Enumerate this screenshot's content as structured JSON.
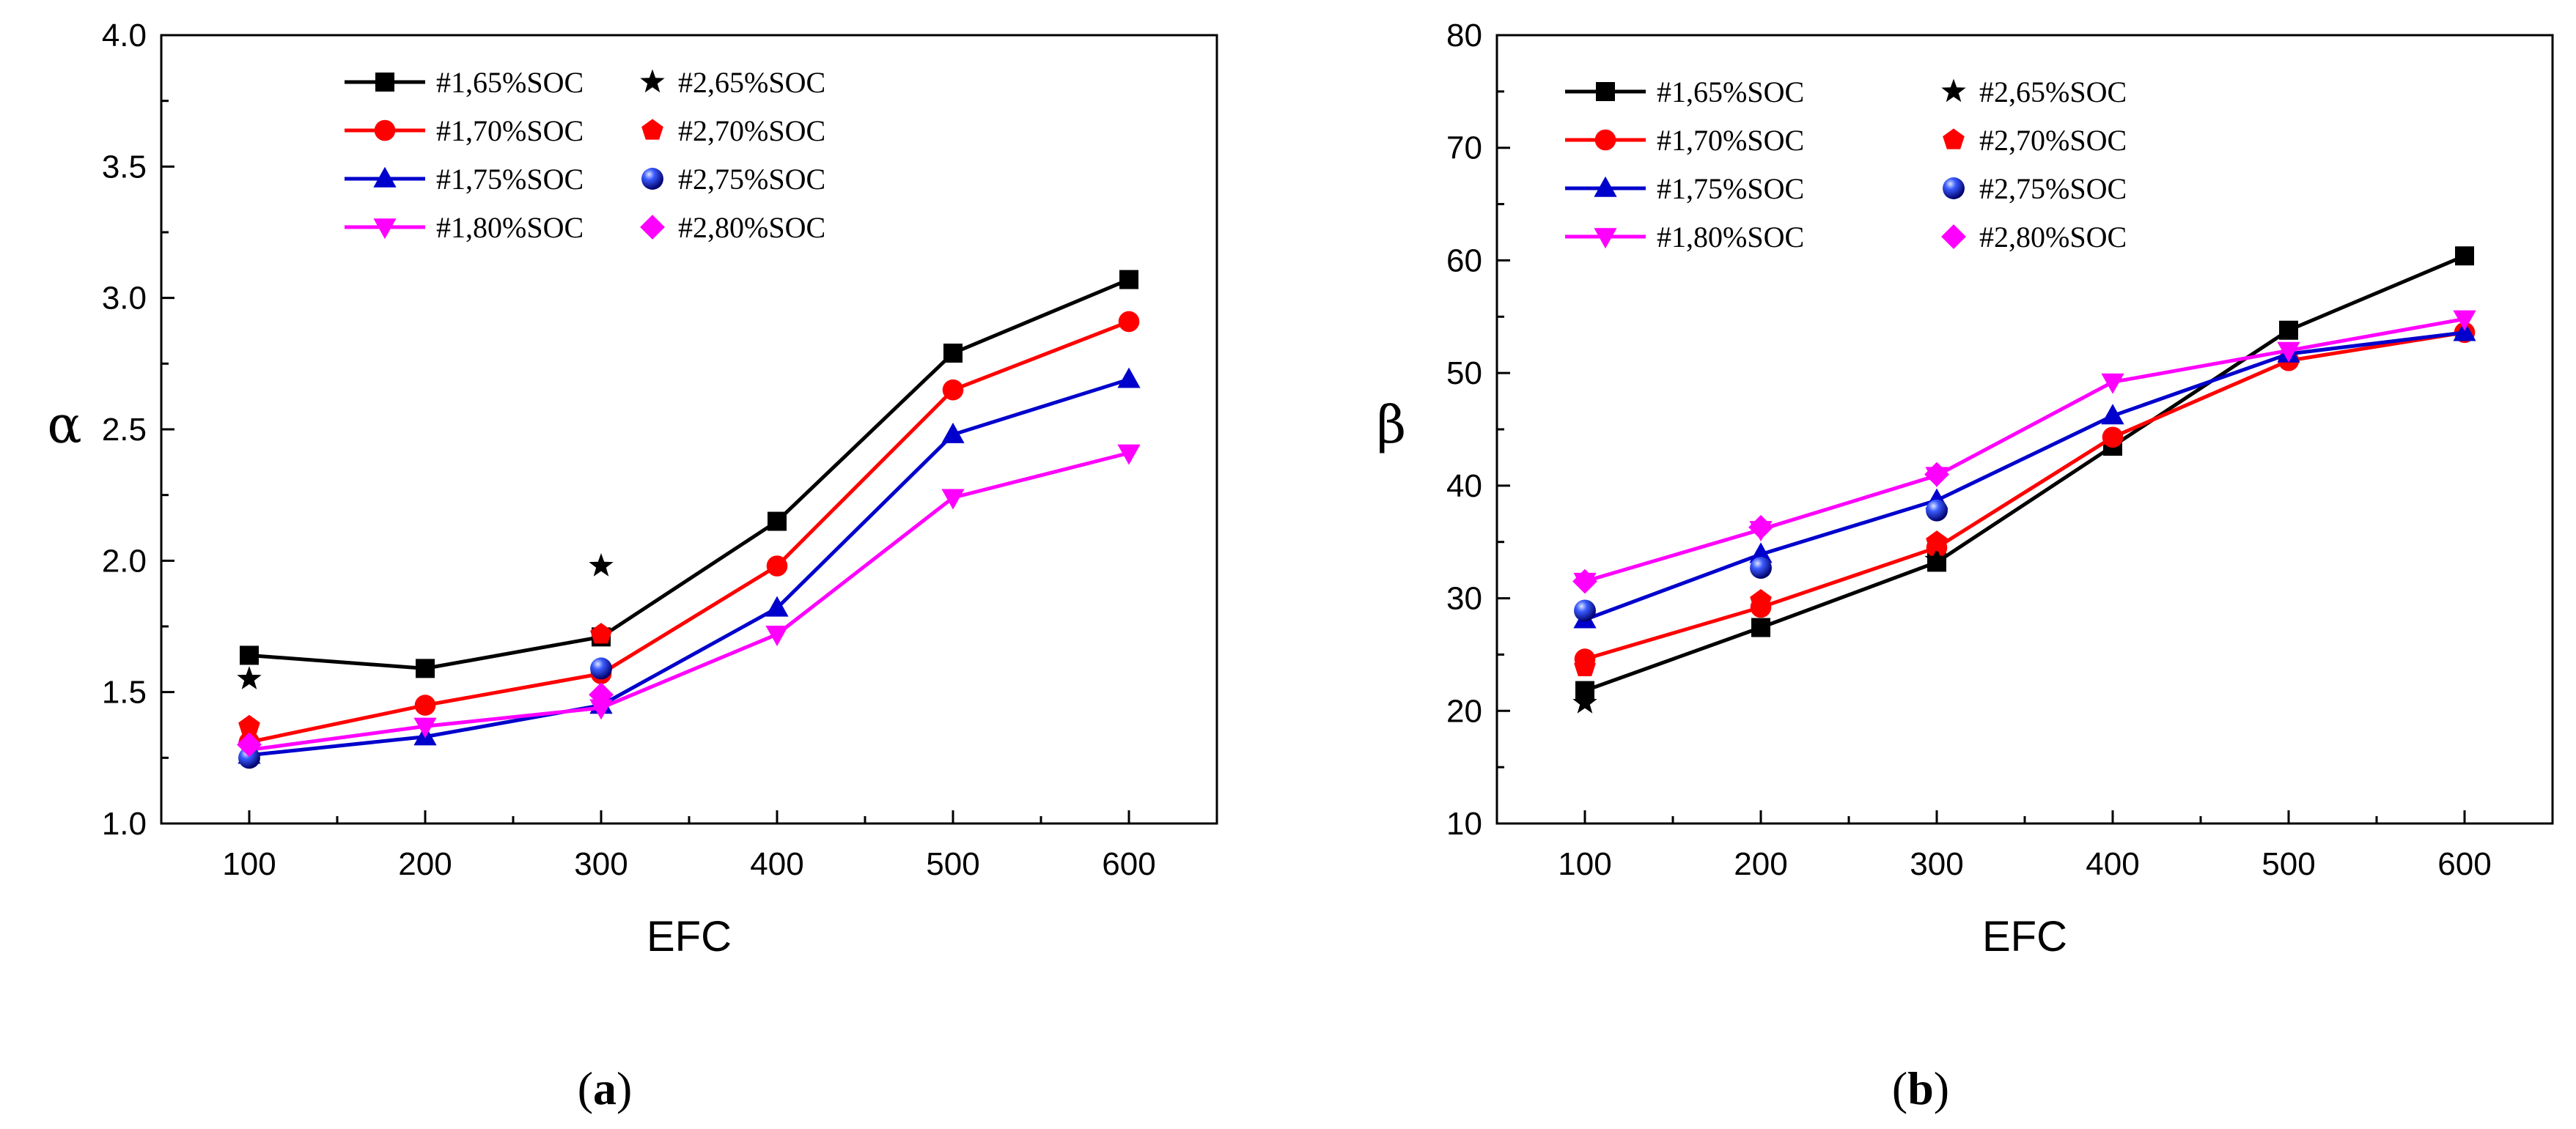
{
  "charts": [
    {
      "id": "a",
      "type": "line",
      "panel_label_open": "(",
      "panel_label_letter": "a",
      "panel_label_close": ")",
      "xlabel": "EFC",
      "ylabel": "α",
      "xlim": [
        50,
        650
      ],
      "ylim": [
        1.0,
        4.0
      ],
      "x_ticks": [
        100,
        200,
        300,
        400,
        500,
        600
      ],
      "y_ticks": [
        1.0,
        1.5,
        2.0,
        2.5,
        3.0,
        3.5,
        4.0
      ],
      "y_tick_labels": [
        "1.0",
        "1.5",
        "2.0",
        "2.5",
        "3.0",
        "3.5",
        "4.0"
      ],
      "x": [
        100,
        200,
        300,
        400,
        500,
        600
      ],
      "series": [
        {
          "name": "#1,65%SOC",
          "color": "#000000",
          "marker": "square",
          "values": [
            1.64,
            1.59,
            1.71,
            2.15,
            2.79,
            3.07
          ]
        },
        {
          "name": "#1,70%SOC",
          "color": "#ff0000",
          "marker": "circle",
          "values": [
            1.31,
            1.45,
            1.57,
            1.98,
            2.65,
            2.91
          ]
        },
        {
          "name": "#1,75%SOC",
          "color": "#0000cc",
          "marker": "triangle-up",
          "values": [
            1.26,
            1.33,
            1.45,
            1.82,
            2.48,
            2.69
          ]
        },
        {
          "name": "#1,80%SOC",
          "color": "#ff00ff",
          "marker": "triangle-down",
          "values": [
            1.28,
            1.37,
            1.44,
            1.72,
            2.24,
            2.41
          ]
        }
      ],
      "scatter": [
        {
          "name": "#2,65%SOC",
          "color": "#000000",
          "marker": "star",
          "points": [
            [
              100,
              1.55
            ],
            [
              300,
              1.98
            ]
          ]
        },
        {
          "name": "#2,70%SOC",
          "color": "#ff0000",
          "marker": "pentagon",
          "points": [
            [
              100,
              1.37
            ],
            [
              300,
              1.72
            ]
          ]
        },
        {
          "name": "#2,75%SOC",
          "color": "#0000ff",
          "marker": "sphere",
          "points": [
            [
              100,
              1.25
            ],
            [
              300,
              1.59
            ]
          ]
        },
        {
          "name": "#2,80%SOC",
          "color": "#ff00ff",
          "marker": "diamond",
          "points": [
            [
              100,
              1.3
            ],
            [
              300,
              1.49
            ]
          ]
        }
      ]
    },
    {
      "id": "b",
      "type": "line",
      "panel_label_open": "(",
      "panel_label_letter": "b",
      "panel_label_close": ")",
      "xlabel": "EFC",
      "ylabel": "β",
      "xlim": [
        50,
        650
      ],
      "ylim": [
        10,
        80
      ],
      "x_ticks": [
        100,
        200,
        300,
        400,
        500,
        600
      ],
      "y_ticks": [
        10,
        20,
        30,
        40,
        50,
        60,
        70,
        80
      ],
      "y_tick_labels": [
        "10",
        "20",
        "30",
        "40",
        "50",
        "60",
        "70",
        "80"
      ],
      "x": [
        100,
        200,
        300,
        400,
        500,
        600
      ],
      "series": [
        {
          "name": "#1,65%SOC",
          "color": "#000000",
          "marker": "square",
          "values": [
            21.8,
            27.4,
            33.2,
            43.5,
            53.8,
            60.4
          ]
        },
        {
          "name": "#1,70%SOC",
          "color": "#ff0000",
          "marker": "circle",
          "values": [
            24.6,
            29.2,
            34.5,
            44.3,
            51.1,
            53.6
          ]
        },
        {
          "name": "#1,75%SOC",
          "color": "#0000cc",
          "marker": "triangle-up",
          "values": [
            28.1,
            33.9,
            38.7,
            46.2,
            51.7,
            53.6
          ]
        },
        {
          "name": "#1,80%SOC",
          "color": "#ff00ff",
          "marker": "triangle-down",
          "values": [
            31.5,
            36.1,
            40.9,
            49.2,
            52.0,
            54.8
          ]
        }
      ],
      "scatter": [
        {
          "name": "#2,65%SOC",
          "color": "#000000",
          "marker": "star",
          "points": [
            [
              100,
              20.7
            ],
            [
              300,
              33.4
            ]
          ]
        },
        {
          "name": "#2,70%SOC",
          "color": "#ff0000",
          "marker": "pentagon",
          "points": [
            [
              100,
              23.9
            ],
            [
              200,
              29.8
            ],
            [
              300,
              35.0
            ]
          ]
        },
        {
          "name": "#2,75%SOC",
          "color": "#0000ff",
          "marker": "sphere",
          "points": [
            [
              100,
              28.9
            ],
            [
              200,
              32.7
            ],
            [
              300,
              37.8
            ]
          ]
        },
        {
          "name": "#2,80%SOC",
          "color": "#ff00ff",
          "marker": "diamond",
          "points": [
            [
              100,
              31.5
            ],
            [
              200,
              36.3
            ],
            [
              300,
              41.0
            ]
          ]
        }
      ]
    }
  ]
}
